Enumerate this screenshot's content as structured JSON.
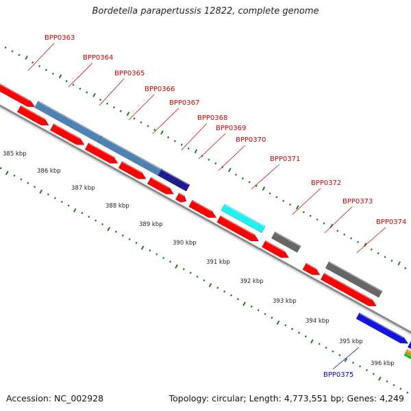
{
  "title": "Bordetella parapertussis 12822, complete genome",
  "footer": {
    "accession": "Accession: NC_002928",
    "summary": "Topology: circular; Length: 4,773,551 bp; Genes: 4,249"
  },
  "colors": {
    "cds": "#ff0000",
    "steelblue": "#4f82b4",
    "navy": "#1c1c8c",
    "cyan": "#22f0f0",
    "gray": "#666666",
    "blue": "#1414e0",
    "orange": "#ff8c00",
    "green": "#22bb22",
    "backbone": "#8f8f8f",
    "ticks": "#1c7a1c",
    "label_red": "#cc0000",
    "label_blue": "#0000cc"
  },
  "ticks": [
    {
      "label": "385 kbp"
    },
    {
      "label": "386 kbp"
    },
    {
      "label": "387 kbp"
    },
    {
      "label": "388 kbp"
    },
    {
      "label": "389 kbp"
    },
    {
      "label": "390 kbp"
    },
    {
      "label": "391 kbp"
    },
    {
      "label": "392 kbp"
    },
    {
      "label": "393 kbp"
    },
    {
      "label": "394 kbp"
    },
    {
      "label": "395 kbp"
    },
    {
      "label": "396 kbp"
    }
  ],
  "gene_labels": [
    {
      "name": "BPP0363",
      "color": "label_red"
    },
    {
      "name": "BPP0364",
      "color": "label_red"
    },
    {
      "name": "BPP0365",
      "color": "label_red"
    },
    {
      "name": "BPP0366",
      "color": "label_red"
    },
    {
      "name": "BPP0367",
      "color": "label_red"
    },
    {
      "name": "BPP0368",
      "color": "label_red"
    },
    {
      "name": "BPP0369",
      "color": "label_red"
    },
    {
      "name": "BPP0370",
      "color": "label_red"
    },
    {
      "name": "BPP0371",
      "color": "label_red"
    },
    {
      "name": "BPP0372",
      "color": "label_red"
    },
    {
      "name": "BPP0373",
      "color": "label_red"
    },
    {
      "name": "BPP0374",
      "color": "label_red"
    },
    {
      "name": "BPP0375",
      "color": "label_blue"
    }
  ]
}
